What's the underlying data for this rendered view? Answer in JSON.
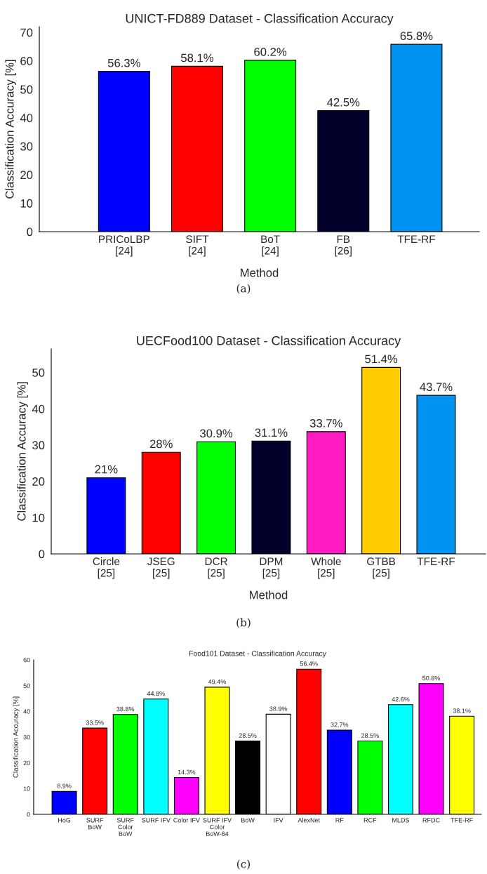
{
  "chart_data": [
    {
      "type": "bar",
      "title": "UNICT-FD889 Dataset - Classification Accuracy",
      "xlabel": "Method",
      "ylabel": "Classification Accuracy [%]",
      "categories": [
        "PRICoLBP\n[24]",
        "SIFT\n[24]",
        "BoT\n[24]",
        "FB\n[26]",
        "TFE-RF"
      ],
      "values": [
        56.3,
        58.1,
        60.2,
        42.5,
        65.8
      ],
      "colors": [
        "#0000ff",
        "#ff0000",
        "#00ff00",
        "#00002a",
        "#0092f0"
      ],
      "value_labels": [
        "56.3%",
        "58.1%",
        "60.2%",
        "42.5%",
        "65.8%"
      ],
      "ylim": [
        0,
        72
      ],
      "yticks": [
        0,
        10,
        20,
        30,
        40,
        50,
        60,
        70
      ],
      "grid": false,
      "legend": false,
      "annotations": [
        "(a)"
      ]
    },
    {
      "type": "bar",
      "title": "UECFood100 Dataset - Classification Accuracy",
      "xlabel": "Method",
      "ylabel": "Classification Accuracy [%]",
      "categories": [
        "Circle\n[25]",
        "JSEG\n[25]",
        "DCR\n[25]",
        "DPM\n[25]",
        "Whole\n[25]",
        "GTBB\n[25]",
        "TFE-RF"
      ],
      "values": [
        21,
        28,
        30.9,
        31.1,
        33.7,
        51.4,
        43.7
      ],
      "colors": [
        "#0000ff",
        "#ff0000",
        "#00ff00",
        "#00002a",
        "#ff1dc2",
        "#ffcc00",
        "#0093f0"
      ],
      "value_labels": [
        "21%",
        "28%",
        "30.9%",
        "31.1%",
        "33.7%",
        "51.4%",
        "43.7%"
      ],
      "ylim": [
        0,
        56.5
      ],
      "yticks": [
        0,
        10,
        20,
        30,
        40,
        50
      ],
      "grid": false,
      "legend": false,
      "annotations": [
        "(b)"
      ]
    },
    {
      "type": "bar",
      "title": "Food101 Dataset - Classification Accuracy",
      "ylabel": "Classification Accuracy [%]",
      "categories": [
        "HoG",
        "SURF\nBoW",
        "SURF\nColor\nBoW",
        "SURF IFV",
        "Color IFV",
        "SURF IFV\nColor\nBoW-64",
        "BoW",
        "IFV",
        "AlexNet",
        "RF",
        "RCF",
        "MLDS",
        "RFDC",
        "TFE-RF"
      ],
      "values": [
        8.9,
        33.5,
        38.8,
        44.8,
        14.3,
        49.4,
        28.5,
        38.9,
        56.4,
        32.7,
        28.5,
        42.6,
        50.8,
        38.1
      ],
      "colors": [
        "#0000ff",
        "#ff0000",
        "#00ff00",
        "#00ffff",
        "#ff00ff",
        "#ffff00",
        "#000000",
        "#ffffff",
        "#ff0000",
        "#0000ff",
        "#00ff00",
        "#00ffff",
        "#ff00ff",
        "#ffff00"
      ],
      "value_labels": [
        "8.9%",
        "33.5%",
        "38.8%",
        "44.8%",
        "14.3%",
        "49.4%",
        "28.5%",
        "38.9%",
        "56.4%",
        "32.7%",
        "28.5%",
        "42.6%",
        "50.8%",
        "38.1%"
      ],
      "ylim": [
        0,
        60
      ],
      "yticks": [
        0,
        10,
        20,
        30,
        40,
        50,
        60
      ],
      "grid": false,
      "legend": false,
      "annotations": [
        "(c)"
      ]
    }
  ]
}
